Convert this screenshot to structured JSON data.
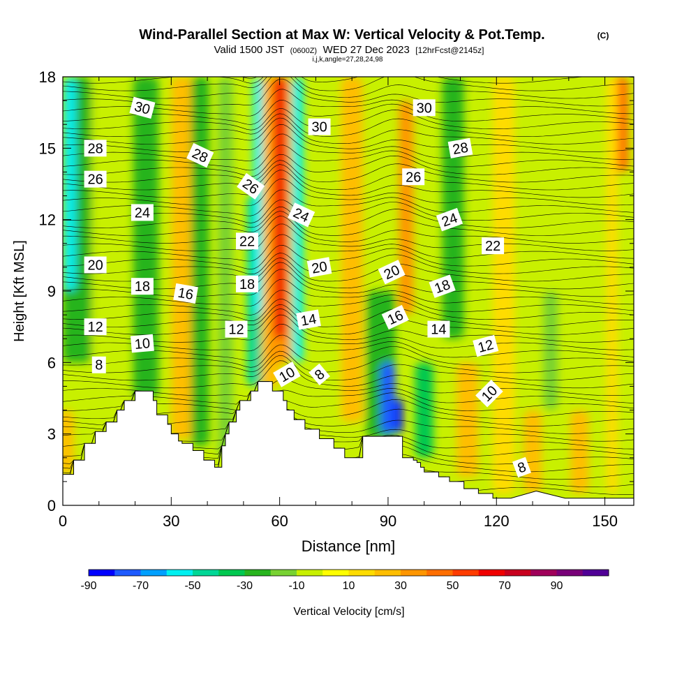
{
  "header": {
    "title": "Wind-Parallel Section at Max W: Vertical Velocity & Pot.Temp.",
    "copyright": "(C)",
    "valid_prefix": "Valid 1500 JST",
    "valid_utc": "(0600Z)",
    "valid_date": "WED 27 Dec 2023",
    "forecast": "[12hrFcst@2145z]",
    "section_params": "i,j,k,angle=27,28,24,98"
  },
  "colorbar": {
    "label": "Vertical Velocity [cm/s]",
    "tick_labels": [
      "-90",
      "-70",
      "-50",
      "-30",
      "-10",
      "10",
      "30",
      "50",
      "70",
      "90"
    ],
    "colors": [
      "#0000ff",
      "#1e5aff",
      "#00a0ff",
      "#00f0f0",
      "#00d796",
      "#00c850",
      "#28b41e",
      "#78d232",
      "#c8f000",
      "#ffff00",
      "#ffdc00",
      "#ffbe00",
      "#ff9600",
      "#ff6e00",
      "#ff3c00",
      "#f00000",
      "#c8001e",
      "#a0005a",
      "#780078",
      "#500096"
    ]
  },
  "chart_data": {
    "type": "heatmap",
    "title": "Wind-Parallel Section at Max W: Vertical Velocity & Pot.Temp.",
    "xlabel": "Distance [nm]",
    "ylabel": "Height [Kft MSL]",
    "xlim": [
      0,
      158
    ],
    "ylim": [
      0,
      18
    ],
    "x_ticks": [
      0,
      30,
      60,
      90,
      120,
      150
    ],
    "y_ticks": [
      0,
      3,
      6,
      9,
      12,
      15,
      18
    ],
    "colorbar_range": [
      -90,
      90
    ],
    "colorbar_step": 10,
    "terrain": {
      "x": [
        0,
        3,
        3,
        6,
        6,
        9,
        9,
        12,
        12,
        15,
        15,
        17,
        17,
        20,
        20,
        25,
        25,
        26,
        26,
        29,
        29,
        30,
        30,
        32,
        32,
        33,
        33,
        36,
        36,
        39,
        39,
        42,
        42,
        44,
        44,
        45,
        45,
        46,
        46,
        48,
        48,
        49,
        49,
        52,
        52,
        54,
        54,
        58,
        58,
        61,
        61,
        62,
        62,
        64,
        64,
        67,
        67,
        71,
        71,
        75,
        75,
        78,
        78,
        83,
        83,
        87,
        87,
        94,
        94,
        97,
        97,
        98,
        98,
        99,
        99,
        100,
        100,
        104,
        104,
        107,
        107,
        111,
        111,
        115,
        115,
        119,
        119,
        120,
        120,
        122,
        122,
        124,
        124,
        131,
        131,
        139,
        139,
        153,
        153,
        158
      ],
      "y": [
        1.3,
        1.3,
        1.9,
        1.9,
        2.6,
        2.6,
        3.1,
        3.1,
        3.5,
        3.5,
        4.0,
        4.0,
        4.4,
        4.4,
        4.8,
        4.8,
        4.4,
        4.4,
        3.8,
        3.8,
        3.4,
        3.4,
        3.0,
        3.0,
        2.7,
        2.7,
        2.6,
        2.6,
        2.3,
        2.3,
        1.9,
        1.9,
        1.6,
        1.6,
        2.5,
        2.5,
        3.0,
        3.0,
        3.5,
        3.5,
        4.0,
        4.0,
        4.4,
        4.4,
        4.8,
        4.8,
        5.2,
        5.2,
        4.8,
        4.8,
        4.4,
        4.4,
        4.0,
        4.0,
        3.6,
        3.6,
        3.2,
        3.2,
        2.8,
        2.8,
        2.4,
        2.4,
        2.0,
        2.0,
        2.9,
        2.9,
        2.9,
        2.9,
        2.0,
        2.0,
        1.9,
        1.9,
        1.8,
        1.8,
        1.6,
        1.6,
        1.4,
        1.4,
        1.2,
        1.2,
        1.0,
        1.0,
        0.7,
        0.7,
        0.5,
        0.5,
        0.3,
        0.3,
        0.3,
        0.3,
        0.3,
        0.3,
        0.3,
        0.6,
        0.6,
        0.3,
        0.3,
        0.3,
        0.3,
        0.3
      ]
    },
    "vertical_velocity_features": [
      {
        "x": 59,
        "y_range": [
          6,
          18
        ],
        "peak_cm_s": 75
      },
      {
        "x": 54,
        "y_range": [
          5,
          12
        ],
        "peak_cm_s": -55
      },
      {
        "x": 2,
        "y_range": [
          9,
          18
        ],
        "peak_cm_s": -55
      },
      {
        "x": 90,
        "y_range": [
          2.8,
          6
        ],
        "peak_cm_s": -90
      },
      {
        "x": 94,
        "y_range": [
          8,
          17
        ],
        "peak_cm_s": 35
      },
      {
        "x": 154,
        "y_range": [
          15,
          18
        ],
        "peak_cm_s": 35
      }
    ],
    "theta_contour_labels": [
      {
        "value": "30",
        "x": 22,
        "y": 16.7,
        "angle": 15
      },
      {
        "value": "28",
        "x": 9,
        "y": 15.0,
        "angle": 0
      },
      {
        "value": "26",
        "x": 9,
        "y": 13.7,
        "angle": 0
      },
      {
        "value": "24",
        "x": 22,
        "y": 12.3,
        "angle": 0
      },
      {
        "value": "20",
        "x": 9,
        "y": 10.1,
        "angle": 0
      },
      {
        "value": "18",
        "x": 22,
        "y": 9.2,
        "angle": 0
      },
      {
        "value": "16",
        "x": 34,
        "y": 8.9,
        "angle": 10
      },
      {
        "value": "12",
        "x": 9,
        "y": 7.5,
        "angle": 0
      },
      {
        "value": "10",
        "x": 22,
        "y": 6.8,
        "angle": -5
      },
      {
        "value": "8",
        "x": 10,
        "y": 5.9,
        "angle": 0
      },
      {
        "value": "28",
        "x": 38,
        "y": 14.7,
        "angle": 25
      },
      {
        "value": "26",
        "x": 52,
        "y": 13.4,
        "angle": 35
      },
      {
        "value": "22",
        "x": 51,
        "y": 11.1,
        "angle": 0
      },
      {
        "value": "18",
        "x": 51,
        "y": 9.3,
        "angle": 0
      },
      {
        "value": "12",
        "x": 48,
        "y": 7.4,
        "angle": 0
      },
      {
        "value": "30",
        "x": 71,
        "y": 15.9,
        "angle": 0
      },
      {
        "value": "24",
        "x": 66,
        "y": 12.2,
        "angle": 25
      },
      {
        "value": "20",
        "x": 71,
        "y": 10.0,
        "angle": -10
      },
      {
        "value": "14",
        "x": 68,
        "y": 7.8,
        "angle": -10
      },
      {
        "value": "10",
        "x": 62,
        "y": 5.5,
        "angle": -30
      },
      {
        "value": "8",
        "x": 71,
        "y": 5.5,
        "angle": -40
      },
      {
        "value": "30",
        "x": 100,
        "y": 16.7,
        "angle": 0
      },
      {
        "value": "28",
        "x": 110,
        "y": 15.0,
        "angle": -10
      },
      {
        "value": "26",
        "x": 97,
        "y": 13.8,
        "angle": 0
      },
      {
        "value": "24",
        "x": 107,
        "y": 12.0,
        "angle": -20
      },
      {
        "value": "22",
        "x": 119,
        "y": 10.9,
        "angle": 0
      },
      {
        "value": "20",
        "x": 91,
        "y": 9.8,
        "angle": -25
      },
      {
        "value": "18",
        "x": 105,
        "y": 9.2,
        "angle": -20
      },
      {
        "value": "16",
        "x": 92,
        "y": 7.9,
        "angle": -25
      },
      {
        "value": "14",
        "x": 104,
        "y": 7.4,
        "angle": 0
      },
      {
        "value": "12",
        "x": 117,
        "y": 6.7,
        "angle": -15
      },
      {
        "value": "10",
        "x": 118,
        "y": 4.7,
        "angle": -45
      },
      {
        "value": "8",
        "x": 127,
        "y": 1.6,
        "angle": -20
      }
    ]
  }
}
